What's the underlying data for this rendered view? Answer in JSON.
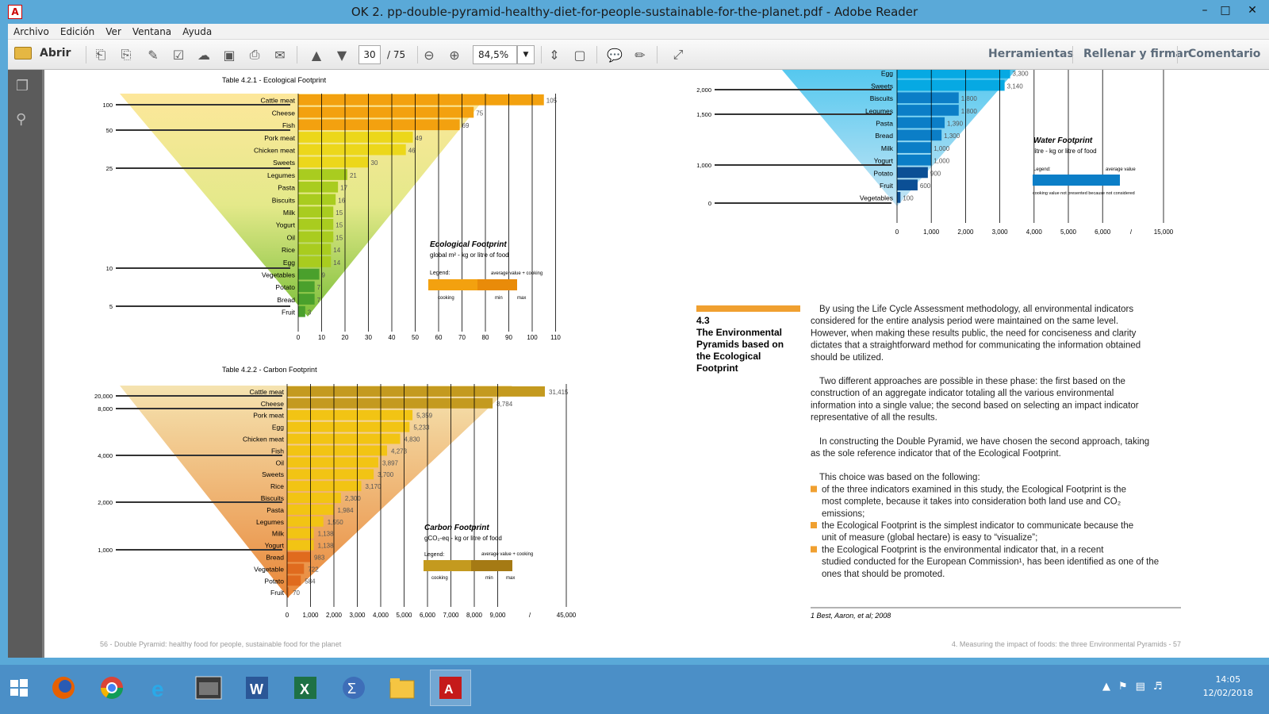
{
  "window": {
    "title": "OK 2. pp-double-pyramid-healthy-diet-for-people-sustainable-for-the-planet.pdf - Adobe Reader"
  },
  "menu": [
    "Archivo",
    "Edición",
    "Ver",
    "Ventana",
    "Ayuda"
  ],
  "toolbar": {
    "open_label": "Abrir",
    "page_current": "30",
    "page_total": "/ 75",
    "zoom": "84,5%",
    "tools_label": "Herramientas",
    "fill_sign_label": "Rellenar y firmar",
    "comment_label": "Comentario"
  },
  "left_page": {
    "footer": "56 - Double Pyramid: healthy food for people, sustainable food for the planet",
    "eco": {
      "table_title": "Table 4.2.1 - Ecological Footprint",
      "legend_title": "Ecological Footprint",
      "legend_sub": "global m² - kg or litre of food",
      "legend_label": "Legend:",
      "legend_avg": "average value + cooking",
      "legend_cooking": "cooking",
      "legend_min": "min",
      "legend_max": "max",
      "pyr_ticks": [
        "100",
        "50",
        "25",
        "10",
        "5"
      ],
      "axis": [
        "0",
        "10",
        "20",
        "30",
        "40",
        "50",
        "60",
        "70",
        "80",
        "90",
        "100",
        "110"
      ],
      "items": [
        {
          "name": "Cattle meat",
          "value": "105"
        },
        {
          "name": "Cheese",
          "value": "75"
        },
        {
          "name": "Fish",
          "value": "69"
        },
        {
          "name": "Pork meat",
          "value": "49"
        },
        {
          "name": "Chicken meat",
          "value": "46"
        },
        {
          "name": "Sweets",
          "value": "30"
        },
        {
          "name": "Legumes",
          "value": "21"
        },
        {
          "name": "Pasta",
          "value": "17"
        },
        {
          "name": "Biscuits",
          "value": "16"
        },
        {
          "name": "Milk",
          "value": "15"
        },
        {
          "name": "Yogurt",
          "value": "15"
        },
        {
          "name": "Oil",
          "value": "15"
        },
        {
          "name": "Rice",
          "value": "14"
        },
        {
          "name": "Egg",
          "value": "14"
        },
        {
          "name": "Vegetables",
          "value": "9"
        },
        {
          "name": "Potato",
          "value": "7"
        },
        {
          "name": "Bread",
          "value": "7"
        },
        {
          "name": "Fruit",
          "value": "3"
        }
      ]
    },
    "carbon": {
      "table_title": "Table 4.2.2 - Carbon Footprint",
      "legend_title": "Carbon Footprint",
      "legend_sub": "gCO₂-eq - kg or litre of food",
      "legend_label": "Legend:",
      "legend_avg": "average value + cooking",
      "legend_cooking": "cooking",
      "legend_min": "min",
      "legend_max": "max",
      "pyr_ticks": [
        "20,000",
        "8,000",
        "4,000",
        "2,000",
        "1,000"
      ],
      "axis": [
        "0",
        "1,000",
        "2,000",
        "3,000",
        "4,000",
        "5,000",
        "6,000",
        "7,000",
        "8,000",
        "9,000",
        "/",
        "45,000"
      ],
      "items": [
        {
          "name": "Cattle meat",
          "value": "31,415"
        },
        {
          "name": "Cheese",
          "value": "8,784"
        },
        {
          "name": "Pork meat",
          "value": "5,359"
        },
        {
          "name": "Egg",
          "value": "5,233"
        },
        {
          "name": "Chicken meat",
          "value": "4,830"
        },
        {
          "name": "Fish",
          "value": "4,273"
        },
        {
          "name": "Oil",
          "value": "3,897"
        },
        {
          "name": "Sweets",
          "value": "3,700"
        },
        {
          "name": "Rice",
          "value": "3,170"
        },
        {
          "name": "Biscuits",
          "value": "2,300"
        },
        {
          "name": "Pasta",
          "value": "1,984"
        },
        {
          "name": "Legumes",
          "value": "1,550"
        },
        {
          "name": "Milk",
          "value": "1,138"
        },
        {
          "name": "Yogurt",
          "value": "1,138"
        },
        {
          "name": "Bread",
          "value": "983"
        },
        {
          "name": "Vegetable",
          "value": "722"
        },
        {
          "name": "Potato",
          "value": "584"
        },
        {
          "name": "Fruit",
          "value": "70"
        }
      ]
    }
  },
  "right_page": {
    "footer": "4. Measuring the impact of foods: the three Environmental Pyramids - 57",
    "water": {
      "legend_title": "Water Footprint",
      "legend_sub": "litre - kg or litre of food",
      "legend_label": "Legend:",
      "legend_avg": "average value",
      "legend_note": "cooking value not presented because not considered",
      "pyr_ticks": [
        "2,000",
        "1,500",
        "1,000",
        "0"
      ],
      "axis": [
        "0",
        "1,000",
        "2,000",
        "3,000",
        "4,000",
        "5,000",
        "6,000",
        "/",
        "15,000"
      ],
      "items": [
        {
          "name": "Egg",
          "value": "3,300"
        },
        {
          "name": "Sweets",
          "value": "3,140"
        },
        {
          "name": "Biscuits",
          "value": "1,800"
        },
        {
          "name": "Legumes",
          "value": "1,800"
        },
        {
          "name": "Pasta",
          "value": "1,390"
        },
        {
          "name": "Bread",
          "value": "1,300"
        },
        {
          "name": "Milk",
          "value": "1,000"
        },
        {
          "name": "Yogurt",
          "value": "1,000"
        },
        {
          "name": "Potato",
          "value": "900"
        },
        {
          "name": "Fruit",
          "value": "600"
        },
        {
          "name": "Vegetables",
          "value": "100"
        }
      ]
    },
    "section": {
      "number": "4.3",
      "title": "The Environmental Pyramids based on the Ecological Footprint"
    },
    "paragraphs": [
      "By using the Life Cycle Assessment methodology, all environmental indicators considered for the entire analysis period were maintained on the same level. However, when making these results public, the need for conciseness and clarity dictates that a straightforward method for communicating the information obtained should be utilized.",
      "Two different approaches are possible in these phase: the first based on the construction of an aggregate indicator totaling all the various environmental information into a single value; the second based on selecting an impact indicator representative of all the results.",
      "In constructing the Double Pyramid, we have chosen the second approach, taking as the sole reference indicator that of the Ecological Footprint.",
      "This choice was based on the following:"
    ],
    "bullets": [
      "of the three indicators examined in this study, the Ecological Footprint is the most complete, because it takes into consideration both land use and CO₂ emissions;",
      "the Ecological Footprint is the simplest indicator to communicate because the unit of measure (global hectare) is easy to “visualize”;",
      "the Ecological Footprint is the environmental indicator that, in a recent studied conducted for the European Commission¹, has been identified as one of the ones that should be promoted."
    ],
    "footnote": "1    Best, Aaron, et al; 2008"
  },
  "taskbar": {
    "time": "14:05",
    "date": "12/02/2018"
  },
  "colors": {
    "titlebar": "#5aa9d8",
    "eco_bar": "#f3a10f",
    "eco_green": "#9ccd2a",
    "carbon_bar": "#c49a1f",
    "water_bar": "#0b7ec7",
    "accent": "#f0a030"
  }
}
